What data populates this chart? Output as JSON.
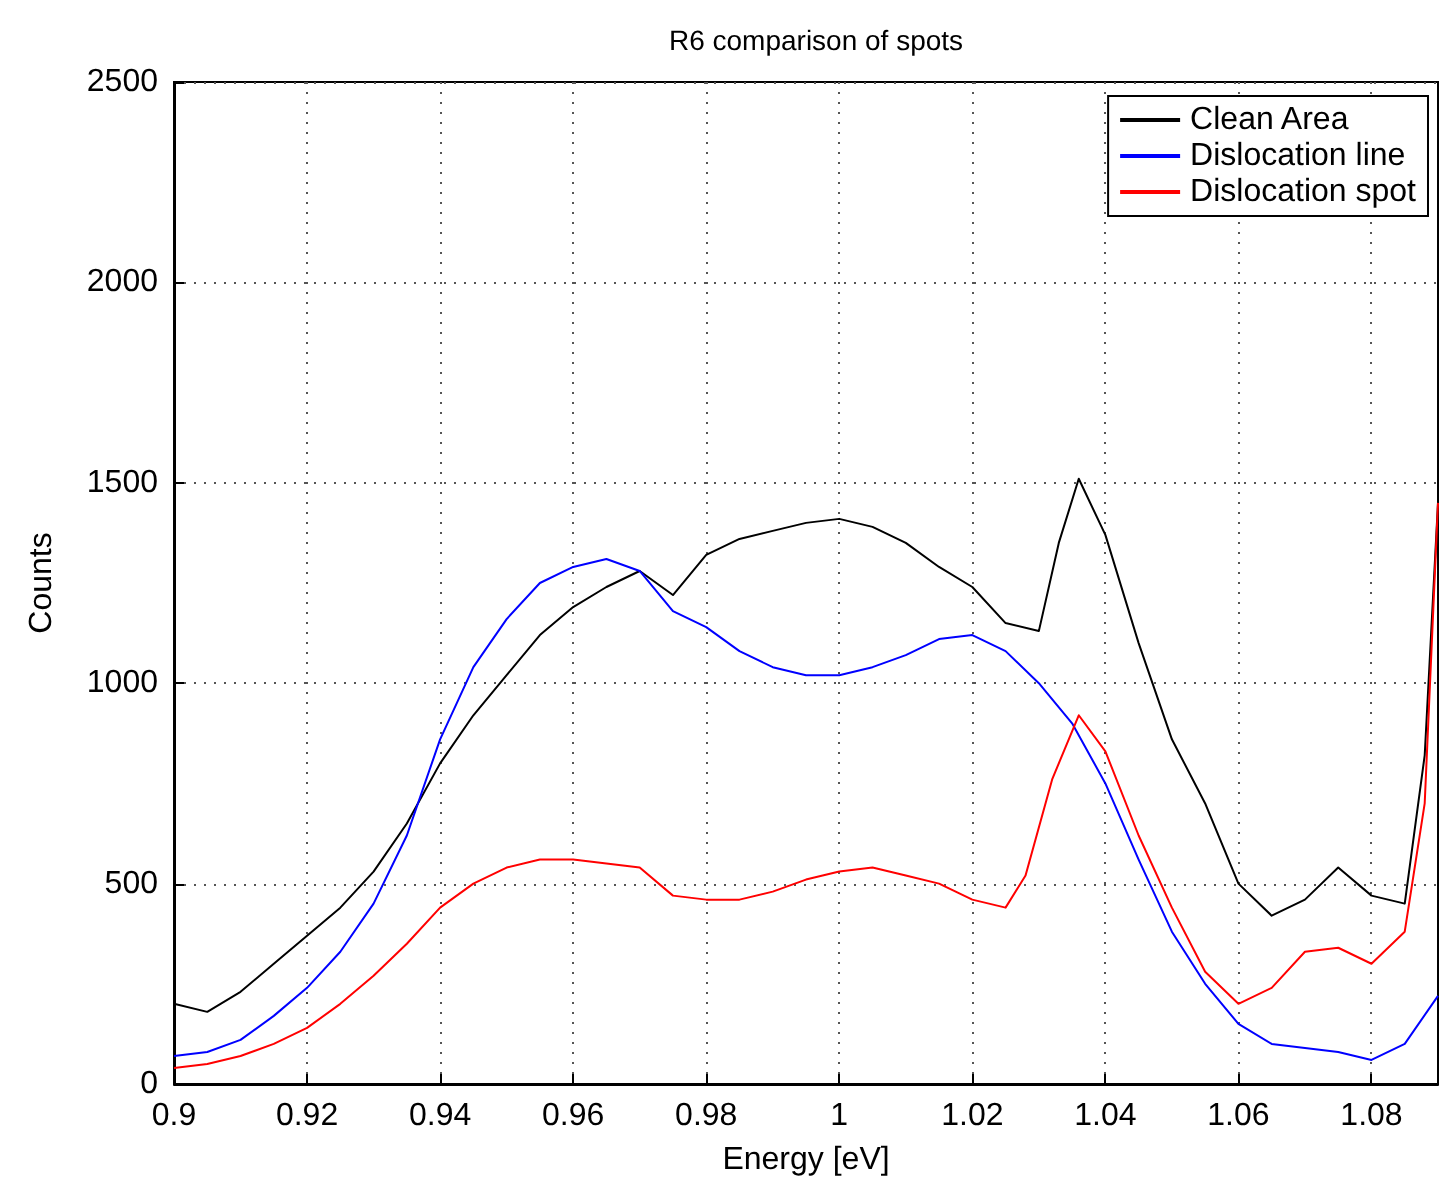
{
  "chart_data": {
    "type": "line",
    "title": "R6 comparison of spots",
    "xlabel": "Energy [eV]",
    "ylabel": "Counts",
    "xlim": [
      0.9,
      1.09
    ],
    "xticks": [
      0.9,
      0.92,
      0.94,
      0.96,
      0.98,
      {
        "value": 1,
        "label": "1"
      },
      1.02,
      1.04,
      1.06,
      1.08
    ],
    "ylim": [
      0,
      2500
    ],
    "yticks": [
      0,
      500,
      1000,
      1500,
      2000,
      2500
    ],
    "grid": true,
    "legend": "top right",
    "marker": "none",
    "line_style": "solid",
    "series": [
      {
        "name": "Clean Area",
        "color": "#000000",
        "x": [
          0.9,
          0.905,
          0.91,
          0.915,
          0.92,
          0.925,
          0.93,
          0.935,
          0.94,
          0.945,
          0.95,
          0.955,
          0.96,
          0.965,
          0.97,
          0.975,
          0.98,
          0.985,
          0.99,
          0.995,
          1.0,
          1.005,
          1.01,
          1.015,
          1.02,
          1.025,
          1.03,
          1.033,
          1.036,
          1.04,
          1.045,
          1.05,
          1.055,
          1.06,
          1.065,
          1.07,
          1.075,
          1.08,
          1.085,
          1.088,
          1.09
        ],
        "values": [
          200,
          180,
          230,
          300,
          370,
          440,
          530,
          650,
          800,
          920,
          1020,
          1120,
          1190,
          1240,
          1280,
          1220,
          1320,
          1360,
          1380,
          1400,
          1410,
          1390,
          1350,
          1290,
          1240,
          1150,
          1130,
          1350,
          1510,
          1370,
          1100,
          860,
          700,
          500,
          420,
          460,
          540,
          470,
          450,
          820,
          1450
        ]
      },
      {
        "name": "Dislocation line",
        "color": "#0000ff",
        "x": [
          0.9,
          0.905,
          0.91,
          0.915,
          0.92,
          0.925,
          0.93,
          0.935,
          0.94,
          0.945,
          0.95,
          0.955,
          0.96,
          0.965,
          0.97,
          0.975,
          0.98,
          0.985,
          0.99,
          0.995,
          1.0,
          1.005,
          1.01,
          1.015,
          1.02,
          1.025,
          1.03,
          1.035,
          1.04,
          1.045,
          1.05,
          1.055,
          1.06,
          1.065,
          1.07,
          1.075,
          1.08,
          1.085,
          1.09
        ],
        "values": [
          70,
          80,
          110,
          170,
          240,
          330,
          450,
          620,
          860,
          1040,
          1160,
          1250,
          1290,
          1310,
          1280,
          1180,
          1140,
          1080,
          1040,
          1020,
          1020,
          1040,
          1070,
          1110,
          1120,
          1080,
          1000,
          900,
          750,
          560,
          380,
          250,
          150,
          100,
          90,
          80,
          60,
          100,
          220
        ]
      },
      {
        "name": "Dislocation spot",
        "color": "#ff0000",
        "x": [
          0.9,
          0.905,
          0.91,
          0.915,
          0.92,
          0.925,
          0.93,
          0.935,
          0.94,
          0.945,
          0.95,
          0.955,
          0.96,
          0.965,
          0.97,
          0.975,
          0.98,
          0.985,
          0.99,
          0.995,
          1.0,
          1.005,
          1.01,
          1.015,
          1.02,
          1.025,
          1.028,
          1.032,
          1.036,
          1.04,
          1.045,
          1.05,
          1.055,
          1.06,
          1.065,
          1.07,
          1.075,
          1.08,
          1.085,
          1.088,
          1.09
        ],
        "values": [
          40,
          50,
          70,
          100,
          140,
          200,
          270,
          350,
          440,
          500,
          540,
          560,
          560,
          550,
          540,
          470,
          460,
          460,
          480,
          510,
          530,
          540,
          520,
          500,
          460,
          440,
          520,
          760,
          920,
          830,
          620,
          440,
          280,
          200,
          240,
          330,
          340,
          300,
          380,
          700,
          1450
        ]
      }
    ]
  }
}
